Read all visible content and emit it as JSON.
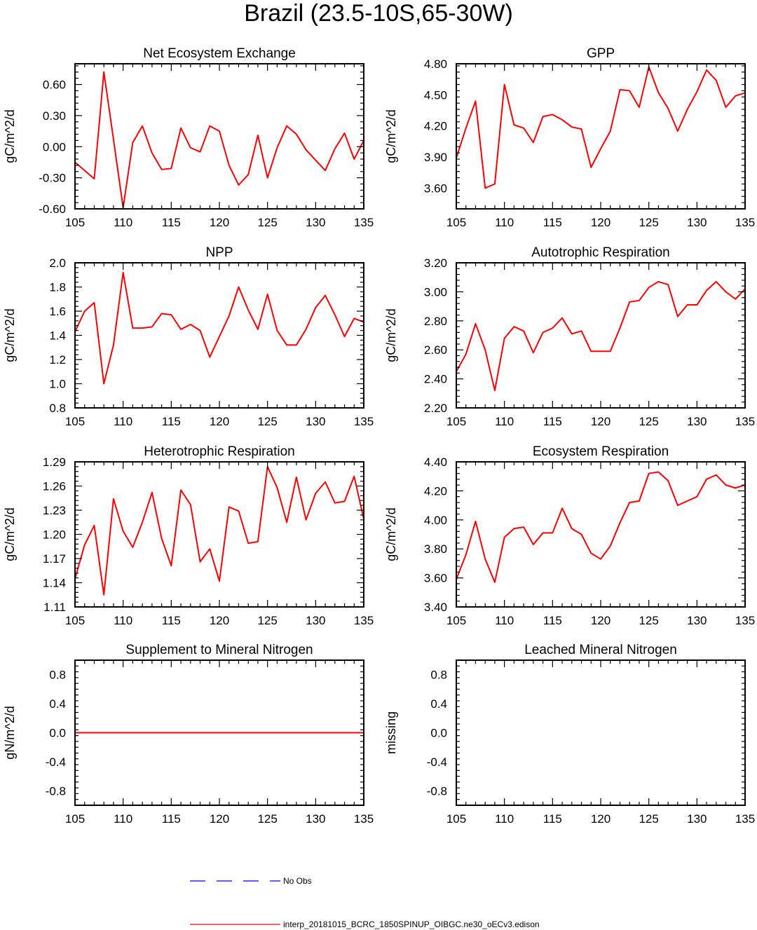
{
  "title": "Brazil (23.5-10S,65-30W)",
  "colors": {
    "model_line": "#ff0000",
    "obs_line": "#0000ff",
    "axis": "#000000"
  },
  "legend": {
    "entries": [
      {
        "label": "No Obs",
        "style": "dashed",
        "color": "#0000ff"
      },
      {
        "label": "interp_20181015_BCRC_1850SPINUP_OIBGC.ne30_oECv3.edison",
        "style": "solid",
        "color": "#ff0000"
      }
    ]
  },
  "chart_data": [
    {
      "type": "line",
      "title": "Net Ecosystem Exchange",
      "ylabel": "gC/m^2/d",
      "xlim": [
        105,
        135
      ],
      "ylim": [
        -0.6,
        0.8
      ],
      "xticks": [
        105,
        110,
        115,
        120,
        125,
        130,
        135
      ],
      "xtick_labels": [
        "105",
        "110",
        "115",
        "120",
        "125",
        "130",
        "135"
      ],
      "yticks": [
        -0.6,
        -0.3,
        0.0,
        0.3,
        0.6
      ],
      "ytick_labels": [
        "-0.60",
        "-0.30",
        "0.00",
        "0.30",
        "0.60"
      ],
      "series": [
        {
          "name": "interp_20181015_BCRC_1850SPINUP_OIBGC.ne30_oECv3.edison",
          "x": [
            105,
            106,
            107,
            108,
            109,
            110,
            111,
            112,
            113,
            114,
            115,
            116,
            117,
            118,
            119,
            120,
            121,
            122,
            123,
            124,
            125,
            126,
            127,
            128,
            129,
            130,
            131,
            132,
            133,
            134,
            135
          ],
          "values": [
            -0.15,
            -0.23,
            -0.31,
            0.72,
            0.07,
            -0.59,
            0.04,
            0.2,
            -0.06,
            -0.22,
            -0.21,
            0.18,
            -0.01,
            -0.05,
            0.2,
            0.15,
            -0.18,
            -0.37,
            -0.27,
            0.11,
            -0.3,
            -0.01,
            0.2,
            0.12,
            -0.03,
            -0.13,
            -0.23,
            -0.02,
            0.13,
            -0.12,
            0.06
          ]
        }
      ]
    },
    {
      "type": "line",
      "title": "GPP",
      "ylabel": "gC/m^2/d",
      "xlim": [
        105,
        135
      ],
      "ylim": [
        3.4,
        4.8
      ],
      "xticks": [
        105,
        110,
        115,
        120,
        125,
        130,
        135
      ],
      "xtick_labels": [
        "105",
        "110",
        "115",
        "120",
        "125",
        "130",
        "135"
      ],
      "yticks": [
        3.6,
        3.9,
        4.2,
        4.5,
        4.8
      ],
      "ytick_labels": [
        "3.60",
        "3.90",
        "4.20",
        "4.50",
        "4.80"
      ],
      "series": [
        {
          "name": "interp_20181015_BCRC_1850SPINUP_OIBGC.ne30_oECv3.edison",
          "x": [
            105,
            106,
            107,
            108,
            109,
            110,
            111,
            112,
            113,
            114,
            115,
            116,
            117,
            118,
            119,
            120,
            121,
            122,
            123,
            124,
            125,
            126,
            127,
            128,
            129,
            130,
            131,
            132,
            133,
            134,
            135
          ],
          "values": [
            3.89,
            4.18,
            4.44,
            3.6,
            3.64,
            4.6,
            4.21,
            4.18,
            4.04,
            4.29,
            4.31,
            4.26,
            4.19,
            4.17,
            3.8,
            3.98,
            4.15,
            4.55,
            4.54,
            4.38,
            4.77,
            4.52,
            4.37,
            4.15,
            4.36,
            4.53,
            4.74,
            4.64,
            4.38,
            4.49,
            4.52
          ]
        }
      ]
    },
    {
      "type": "line",
      "title": "NPP",
      "ylabel": "gC/m^2/d",
      "xlim": [
        105,
        135
      ],
      "ylim": [
        0.8,
        2.0
      ],
      "xticks": [
        105,
        110,
        115,
        120,
        125,
        130,
        135
      ],
      "xtick_labels": [
        "105",
        "110",
        "115",
        "120",
        "125",
        "130",
        "135"
      ],
      "yticks": [
        0.8,
        1.0,
        1.2,
        1.4,
        1.6,
        1.8,
        2.0
      ],
      "ytick_labels": [
        "0.8",
        "1.0",
        "1.2",
        "1.4",
        "1.6",
        "1.8",
        "2.0"
      ],
      "series": [
        {
          "name": "interp_20181015_BCRC_1850SPINUP_OIBGC.ne30_oECv3.edison",
          "x": [
            105,
            106,
            107,
            108,
            109,
            110,
            111,
            112,
            113,
            114,
            115,
            116,
            117,
            118,
            119,
            120,
            121,
            122,
            123,
            124,
            125,
            126,
            127,
            128,
            129,
            130,
            131,
            132,
            133,
            134,
            135
          ],
          "values": [
            1.43,
            1.6,
            1.67,
            1.0,
            1.32,
            1.92,
            1.46,
            1.46,
            1.47,
            1.58,
            1.57,
            1.45,
            1.49,
            1.44,
            1.22,
            1.39,
            1.56,
            1.8,
            1.61,
            1.45,
            1.74,
            1.44,
            1.32,
            1.32,
            1.45,
            1.63,
            1.73,
            1.57,
            1.39,
            1.54,
            1.51
          ]
        }
      ]
    },
    {
      "type": "line",
      "title": "Autotrophic Respiration",
      "ylabel": "gC/m^2/d",
      "xlim": [
        105,
        135
      ],
      "ylim": [
        2.2,
        3.2
      ],
      "xticks": [
        105,
        110,
        115,
        120,
        125,
        130,
        135
      ],
      "xtick_labels": [
        "105",
        "110",
        "115",
        "120",
        "125",
        "130",
        "135"
      ],
      "yticks": [
        2.2,
        2.4,
        2.6,
        2.8,
        3.0,
        3.2
      ],
      "ytick_labels": [
        "2.20",
        "2.40",
        "2.60",
        "2.80",
        "3.00",
        "3.20"
      ],
      "series": [
        {
          "name": "interp_20181015_BCRC_1850SPINUP_OIBGC.ne30_oECv3.edison",
          "x": [
            105,
            106,
            107,
            108,
            109,
            110,
            111,
            112,
            113,
            114,
            115,
            116,
            117,
            118,
            119,
            120,
            121,
            122,
            123,
            124,
            125,
            126,
            127,
            128,
            129,
            130,
            131,
            132,
            133,
            134,
            135
          ],
          "values": [
            2.45,
            2.57,
            2.78,
            2.6,
            2.32,
            2.68,
            2.76,
            2.73,
            2.58,
            2.72,
            2.75,
            2.82,
            2.71,
            2.73,
            2.59,
            2.59,
            2.59,
            2.75,
            2.93,
            2.94,
            3.03,
            3.07,
            3.05,
            2.83,
            2.91,
            2.91,
            3.01,
            3.07,
            3.0,
            2.95,
            3.02
          ]
        }
      ]
    },
    {
      "type": "line",
      "title": "Heterotrophic Respiration",
      "ylabel": "gC/m^2/d",
      "xlim": [
        105,
        135
      ],
      "ylim": [
        1.11,
        1.29
      ],
      "xticks": [
        105,
        110,
        115,
        120,
        125,
        130,
        135
      ],
      "xtick_labels": [
        "105",
        "110",
        "115",
        "120",
        "125",
        "130",
        "135"
      ],
      "yticks": [
        1.11,
        1.14,
        1.17,
        1.2,
        1.23,
        1.26,
        1.29
      ],
      "ytick_labels": [
        "1.11",
        "1.14",
        "1.17",
        "1.20",
        "1.23",
        "1.26",
        "1.29"
      ],
      "series": [
        {
          "name": "interp_20181015_BCRC_1850SPINUP_OIBGC.ne30_oECv3.edison",
          "x": [
            105,
            106,
            107,
            108,
            109,
            110,
            111,
            112,
            113,
            114,
            115,
            116,
            117,
            118,
            119,
            120,
            121,
            122,
            123,
            124,
            125,
            126,
            127,
            128,
            129,
            130,
            131,
            132,
            133,
            134,
            135
          ],
          "values": [
            1.145,
            1.187,
            1.211,
            1.125,
            1.244,
            1.204,
            1.184,
            1.215,
            1.252,
            1.195,
            1.161,
            1.255,
            1.237,
            1.166,
            1.182,
            1.142,
            1.234,
            1.229,
            1.189,
            1.191,
            1.284,
            1.258,
            1.215,
            1.271,
            1.218,
            1.251,
            1.265,
            1.239,
            1.241,
            1.272,
            1.219
          ]
        }
      ]
    },
    {
      "type": "line",
      "title": "Ecosystem Respiration",
      "ylabel": "gC/m^2/d",
      "xlim": [
        105,
        135
      ],
      "ylim": [
        3.4,
        4.4
      ],
      "xticks": [
        105,
        110,
        115,
        120,
        125,
        130,
        135
      ],
      "xtick_labels": [
        "105",
        "110",
        "115",
        "120",
        "125",
        "130",
        "135"
      ],
      "yticks": [
        3.4,
        3.6,
        3.8,
        4.0,
        4.2,
        4.4
      ],
      "ytick_labels": [
        "3.40",
        "3.60",
        "3.80",
        "4.00",
        "4.20",
        "4.40"
      ],
      "series": [
        {
          "name": "interp_20181015_BCRC_1850SPINUP_OIBGC.ne30_oECv3.edison",
          "x": [
            105,
            106,
            107,
            108,
            109,
            110,
            111,
            112,
            113,
            114,
            115,
            116,
            117,
            118,
            119,
            120,
            121,
            122,
            123,
            124,
            125,
            126,
            127,
            128,
            129,
            130,
            131,
            132,
            133,
            134,
            135
          ],
          "values": [
            3.59,
            3.76,
            3.99,
            3.73,
            3.57,
            3.88,
            3.94,
            3.95,
            3.83,
            3.91,
            3.91,
            4.08,
            3.94,
            3.9,
            3.77,
            3.73,
            3.82,
            3.98,
            4.12,
            4.13,
            4.32,
            4.33,
            4.27,
            4.1,
            4.13,
            4.16,
            4.28,
            4.31,
            4.24,
            4.22,
            4.24
          ]
        }
      ]
    },
    {
      "type": "line",
      "title": "Supplement to Mineral Nitrogen",
      "ylabel": "gN/m^2/d",
      "xlim": [
        105,
        135
      ],
      "ylim": [
        -1.0,
        1.0
      ],
      "xticks": [
        105,
        110,
        115,
        120,
        125,
        130,
        135
      ],
      "xtick_labels": [
        "105",
        "110",
        "115",
        "120",
        "125",
        "130",
        "135"
      ],
      "yticks": [
        -0.8,
        -0.4,
        0.0,
        0.4,
        0.8
      ],
      "ytick_labels": [
        "-0.8",
        "-0.4",
        "0.0",
        "0.4",
        "0.8"
      ],
      "series": [
        {
          "name": "interp_20181015_BCRC_1850SPINUP_OIBGC.ne30_oECv3.edison",
          "x": [
            105,
            135
          ],
          "values": [
            0.0,
            0.0
          ]
        }
      ]
    },
    {
      "type": "line",
      "title": "Leached Mineral Nitrogen",
      "ylabel": "missing",
      "xlim": [
        105,
        135
      ],
      "ylim": [
        -1.0,
        1.0
      ],
      "xticks": [
        105,
        110,
        115,
        120,
        125,
        130,
        135
      ],
      "xtick_labels": [
        "105",
        "110",
        "115",
        "120",
        "125",
        "130",
        "135"
      ],
      "yticks": [
        -0.8,
        -0.4,
        0.0,
        0.4,
        0.8
      ],
      "ytick_labels": [
        "-0.8",
        "-0.4",
        "0.0",
        "0.4",
        "0.8"
      ],
      "series": []
    }
  ]
}
